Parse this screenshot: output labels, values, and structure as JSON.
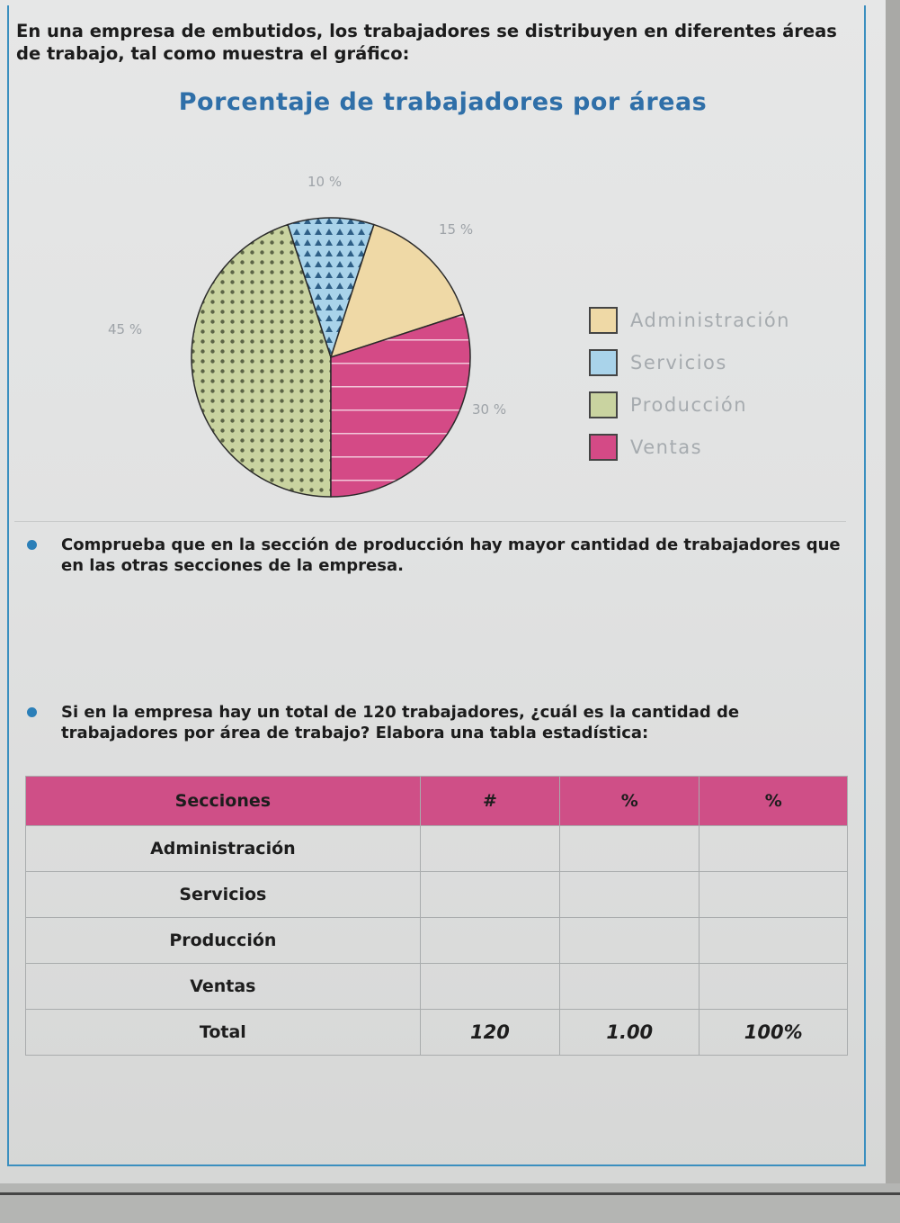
{
  "intro": "En una empresa de embutidos, los trabajadores se distribuyen en diferentes áreas de trabajo, tal como muestra el gráfico:",
  "chart_data": {
    "type": "pie",
    "title": "Porcentaje de trabajadores por áreas",
    "categories": [
      "Administración",
      "Servicios",
      "Producción",
      "Ventas"
    ],
    "values": [
      15,
      10,
      45,
      30
    ],
    "value_labels": [
      "15 %",
      "10 %",
      "45 %",
      "30 %"
    ],
    "colors": [
      "#efd9a6",
      "#a9d3ea",
      "#c9d3a0",
      "#d44a86"
    ],
    "legend_position": "right"
  },
  "questions": [
    "Comprueba que en la sección de producción hay mayor cantidad de trabajadores que en las otras secciones de la empresa.",
    "Si en la empresa hay un total de 120 trabajadores, ¿cuál es la cantidad de trabajadores por área de trabajo? Elabora una tabla estadística:"
  ],
  "table": {
    "headers": [
      "Secciones",
      "#",
      "%",
      "%"
    ],
    "rows": [
      "Administración",
      "Servicios",
      "Producción",
      "Ventas"
    ],
    "total": {
      "label": "Total",
      "count": "120",
      "fraction": "1.00",
      "percent": "100%"
    }
  }
}
